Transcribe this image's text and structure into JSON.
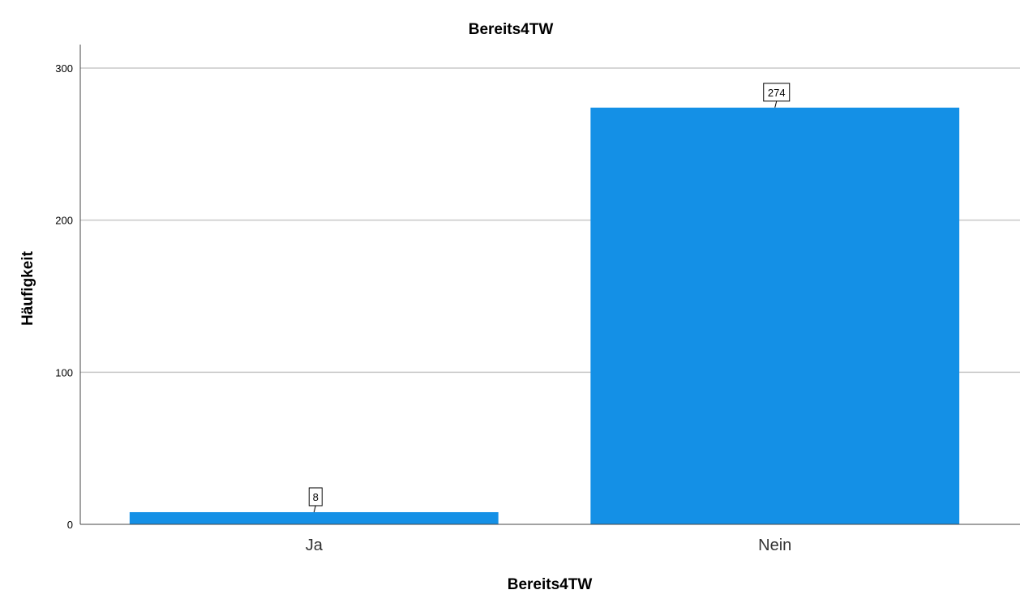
{
  "chart_data": {
    "type": "bar",
    "title": "Bereits4TW",
    "xlabel": "Bereits4TW",
    "ylabel": "Häufigkeit",
    "categories": [
      "Ja",
      "Nein"
    ],
    "values": [
      8,
      274
    ],
    "data_labels": [
      "8",
      "274"
    ],
    "ylim": [
      0,
      300
    ],
    "yticks": [
      0,
      100,
      200,
      300
    ],
    "ytick_labels": [
      "0",
      "100",
      "200",
      "300"
    ],
    "grid": "horizontal",
    "bar_color": "#1490E6",
    "grid_color": "#C8C8C8"
  }
}
